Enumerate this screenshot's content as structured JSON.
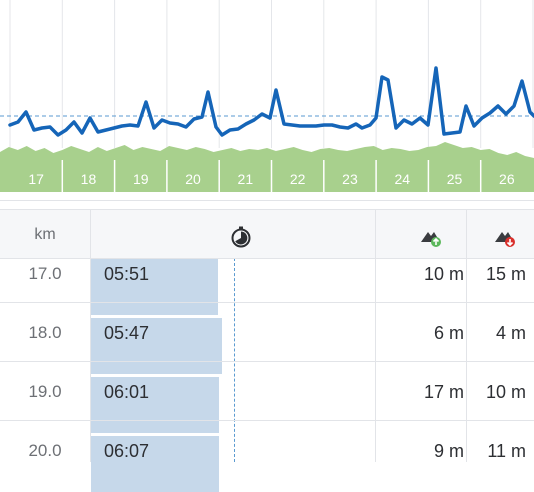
{
  "chart": {
    "km_markers": [
      "17",
      "18",
      "19",
      "20",
      "21",
      "22",
      "23",
      "24",
      "25",
      "26"
    ],
    "pace_line_color": "#1565b8",
    "elevation_fill_color": "#a8d08d",
    "average_line_color": "#5a9ad0"
  },
  "table": {
    "header": {
      "km_label": "km",
      "pace_icon": "stopwatch-icon",
      "ascent_icon": "mountain-ascent-icon",
      "descent_icon": "mountain-descent-icon"
    },
    "rows": [
      {
        "km": "17.0",
        "pace": "05:51",
        "ascent": "10 m",
        "descent": "15 m",
        "pace_fraction": 0.96
      },
      {
        "km": "18.0",
        "pace": "05:47",
        "ascent": "6 m",
        "descent": "4 m",
        "pace_fraction": 0.99
      },
      {
        "km": "19.0",
        "pace": "06:01",
        "ascent": "17 m",
        "descent": "10 m",
        "pace_fraction": 0.97
      },
      {
        "km": "20.0",
        "pace": "06:07",
        "ascent": "9 m",
        "descent": "11 m",
        "pace_fraction": 0.97
      }
    ]
  }
}
